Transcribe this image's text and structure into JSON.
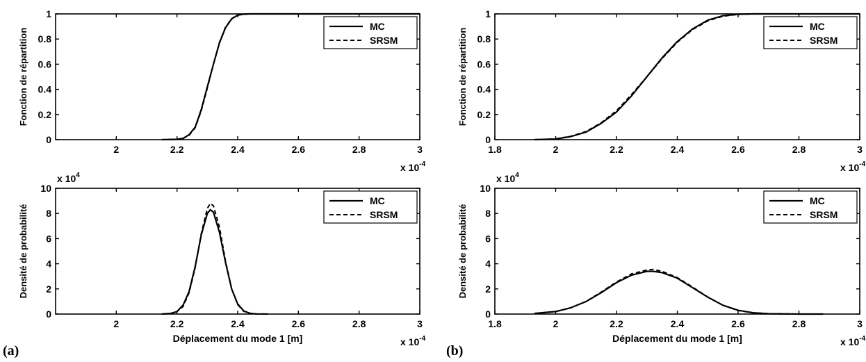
{
  "panel_labels": [
    "(a)",
    "(b)"
  ],
  "chart_data": [
    {
      "panel": "(a)",
      "position": "top",
      "type": "line",
      "ylabel": "Fonction de répartition",
      "xlabel": "",
      "x_exponent": "x 10",
      "x_exponent_power": "-4",
      "y_exponent": "",
      "y_exponent_power": "",
      "xlim": [
        1.8,
        3.0
      ],
      "ylim": [
        0,
        1
      ],
      "xticks": [
        2,
        2.2,
        2.4,
        2.6,
        2.8,
        3
      ],
      "xtick_labels": [
        "2",
        "2.2",
        "2.4",
        "2.6",
        "2.8",
        "3"
      ],
      "yticks": [
        0,
        0.2,
        0.4,
        0.6,
        0.8,
        1
      ],
      "ytick_labels": [
        "0",
        "0.2",
        "0.4",
        "0.6",
        "0.8",
        "1"
      ],
      "legend": {
        "placement": "top-right",
        "entries": [
          "MC",
          "SRSM"
        ]
      },
      "grid": false,
      "series": [
        {
          "name": "MC",
          "style": "solid",
          "x": [
            2.15,
            2.2,
            2.22,
            2.24,
            2.26,
            2.28,
            2.3,
            2.32,
            2.34,
            2.36,
            2.38,
            2.4,
            2.42,
            2.44,
            2.6,
            2.8,
            3.0
          ],
          "y": [
            0.0,
            0.003,
            0.01,
            0.04,
            0.1,
            0.24,
            0.42,
            0.6,
            0.77,
            0.89,
            0.96,
            0.99,
            0.998,
            1.0,
            1.0,
            1.0,
            1.0
          ]
        },
        {
          "name": "SRSM",
          "style": "dashed",
          "x": [
            2.15,
            2.2,
            2.22,
            2.24,
            2.26,
            2.28,
            2.3,
            2.32,
            2.34,
            2.36,
            2.38,
            2.4,
            2.42,
            2.44,
            2.6,
            2.8,
            3.0
          ],
          "y": [
            0.0,
            0.003,
            0.01,
            0.035,
            0.095,
            0.23,
            0.41,
            0.6,
            0.775,
            0.895,
            0.962,
            0.991,
            0.998,
            1.0,
            1.0,
            1.0,
            1.0
          ]
        }
      ]
    },
    {
      "panel": "(a)",
      "position": "bottom",
      "type": "line",
      "ylabel": "Densité de probabilité",
      "xlabel": "Déplacement du mode 1 [m]",
      "x_exponent": "x 10",
      "x_exponent_power": "-4",
      "y_exponent": "x 10",
      "y_exponent_power": "4",
      "xlim": [
        1.8,
        3.0
      ],
      "ylim": [
        0,
        10
      ],
      "xticks": [
        2,
        2.2,
        2.4,
        2.6,
        2.8,
        3
      ],
      "xtick_labels": [
        "2",
        "2.2",
        "2.4",
        "2.6",
        "2.8",
        "3"
      ],
      "yticks": [
        0,
        2,
        4,
        6,
        8,
        10
      ],
      "ytick_labels": [
        "0",
        "2",
        "4",
        "6",
        "8",
        "10"
      ],
      "legend": {
        "placement": "top-right",
        "entries": [
          "MC",
          "SRSM"
        ]
      },
      "grid": false,
      "series": [
        {
          "name": "MC",
          "style": "solid",
          "x": [
            2.15,
            2.18,
            2.2,
            2.22,
            2.24,
            2.26,
            2.28,
            2.3,
            2.31,
            2.32,
            2.34,
            2.36,
            2.38,
            2.4,
            2.42,
            2.44,
            2.46,
            2.5
          ],
          "y": [
            0.0,
            0.05,
            0.2,
            0.7,
            1.8,
            3.8,
            6.3,
            8.0,
            8.3,
            8.1,
            6.5,
            4.1,
            2.0,
            0.8,
            0.25,
            0.06,
            0.01,
            0.0
          ]
        },
        {
          "name": "SRSM",
          "style": "dashed",
          "x": [
            2.15,
            2.18,
            2.2,
            2.22,
            2.24,
            2.26,
            2.28,
            2.3,
            2.31,
            2.32,
            2.34,
            2.36,
            2.38,
            2.4,
            2.42,
            2.44,
            2.46,
            2.5
          ],
          "y": [
            0.0,
            0.05,
            0.2,
            0.6,
            1.7,
            3.7,
            6.4,
            8.4,
            8.8,
            8.6,
            6.9,
            4.2,
            2.0,
            0.75,
            0.22,
            0.05,
            0.01,
            0.0
          ]
        }
      ]
    },
    {
      "panel": "(b)",
      "position": "top",
      "type": "line",
      "ylabel": "Fonction de répartition",
      "xlabel": "",
      "x_exponent": "x 10",
      "x_exponent_power": "-4",
      "y_exponent": "",
      "y_exponent_power": "",
      "xlim": [
        1.8,
        3.0
      ],
      "ylim": [
        0,
        1
      ],
      "xticks": [
        1.8,
        2,
        2.2,
        2.4,
        2.6,
        2.8,
        3
      ],
      "xtick_labels": [
        "1.8",
        "2",
        "2.2",
        "2.4",
        "2.6",
        "2.8",
        "3"
      ],
      "yticks": [
        0,
        0.2,
        0.4,
        0.6,
        0.8,
        1
      ],
      "ytick_labels": [
        "0",
        "0.2",
        "0.4",
        "0.6",
        "0.8",
        "1"
      ],
      "legend": {
        "placement": "top-right",
        "entries": [
          "MC",
          "SRSM"
        ]
      },
      "grid": false,
      "series": [
        {
          "name": "MC",
          "style": "solid",
          "x": [
            1.93,
            2.0,
            2.05,
            2.1,
            2.15,
            2.2,
            2.25,
            2.3,
            2.35,
            2.4,
            2.45,
            2.5,
            2.55,
            2.6,
            2.65,
            2.8,
            3.0
          ],
          "y": [
            0.0,
            0.005,
            0.025,
            0.06,
            0.13,
            0.22,
            0.35,
            0.5,
            0.65,
            0.78,
            0.88,
            0.95,
            0.985,
            0.997,
            1.0,
            1.0,
            1.0
          ]
        },
        {
          "name": "SRSM",
          "style": "dashed",
          "x": [
            1.93,
            2.0,
            2.05,
            2.1,
            2.15,
            2.2,
            2.25,
            2.3,
            2.35,
            2.4,
            2.45,
            2.5,
            2.55,
            2.6,
            2.65,
            2.8,
            3.0
          ],
          "y": [
            0.0,
            0.006,
            0.027,
            0.065,
            0.135,
            0.23,
            0.36,
            0.5,
            0.645,
            0.775,
            0.875,
            0.945,
            0.982,
            0.996,
            1.0,
            1.0,
            1.0
          ]
        }
      ]
    },
    {
      "panel": "(b)",
      "position": "bottom",
      "type": "line",
      "ylabel": "Densité de probabilité",
      "xlabel": "Déplacement du mode 1 [m]",
      "x_exponent": "x 10",
      "x_exponent_power": "-4",
      "y_exponent": "x 10",
      "y_exponent_power": "4",
      "xlim": [
        1.8,
        3.0
      ],
      "ylim": [
        0,
        10
      ],
      "xticks": [
        1.8,
        2,
        2.2,
        2.4,
        2.6,
        2.8,
        3
      ],
      "xtick_labels": [
        "1.8",
        "2",
        "2.2",
        "2.4",
        "2.6",
        "2.8",
        "3"
      ],
      "yticks": [
        0,
        2,
        4,
        6,
        8,
        10
      ],
      "ytick_labels": [
        "0",
        "2",
        "4",
        "6",
        "8",
        "10"
      ],
      "legend": {
        "placement": "top-right",
        "entries": [
          "MC",
          "SRSM"
        ]
      },
      "grid": false,
      "series": [
        {
          "name": "MC",
          "style": "solid",
          "x": [
            1.93,
            2.0,
            2.05,
            2.1,
            2.15,
            2.2,
            2.25,
            2.3,
            2.32,
            2.35,
            2.4,
            2.45,
            2.5,
            2.55,
            2.6,
            2.65,
            2.7,
            2.8,
            2.88
          ],
          "y": [
            0.05,
            0.2,
            0.5,
            1.0,
            1.7,
            2.5,
            3.1,
            3.4,
            3.4,
            3.3,
            2.85,
            2.1,
            1.35,
            0.7,
            0.3,
            0.1,
            0.03,
            0.0,
            0.0
          ]
        },
        {
          "name": "SRSM",
          "style": "dashed",
          "x": [
            1.93,
            2.0,
            2.05,
            2.1,
            2.15,
            2.2,
            2.25,
            2.3,
            2.32,
            2.35,
            2.4,
            2.45,
            2.5,
            2.55,
            2.6,
            2.65,
            2.7,
            2.8,
            2.88
          ],
          "y": [
            0.05,
            0.2,
            0.5,
            1.0,
            1.75,
            2.55,
            3.2,
            3.5,
            3.55,
            3.4,
            2.9,
            2.15,
            1.35,
            0.7,
            0.28,
            0.1,
            0.03,
            0.0,
            0.0
          ]
        }
      ]
    }
  ]
}
